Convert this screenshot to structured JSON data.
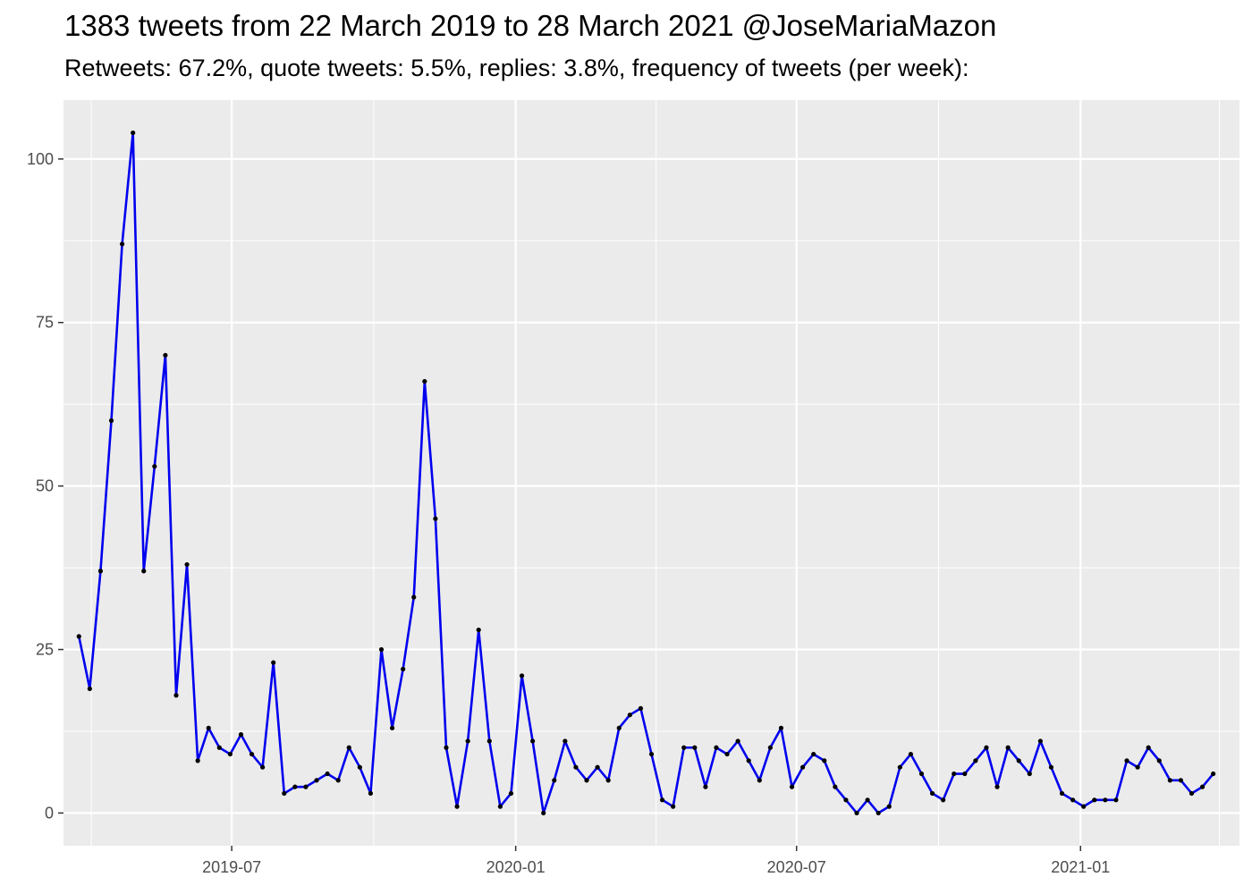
{
  "chart_data": {
    "type": "line",
    "title": "1383 tweets from 22 March 2019 to 28 March 2021 @JoseMariaMazon",
    "subtitle": "Retweets: 67.2%, quote tweets: 5.5%, replies: 3.8%, frequency of tweets (per week):",
    "xlabel": "",
    "ylabel": "",
    "x_axis": {
      "type": "date",
      "range": [
        "2019-03-14",
        "2021-04-14"
      ],
      "ticks": [
        {
          "date": "2019-07-01",
          "label": "2019-07"
        },
        {
          "date": "2020-01-01",
          "label": "2020-01"
        },
        {
          "date": "2020-07-01",
          "label": "2020-07"
        },
        {
          "date": "2021-01-01",
          "label": "2021-01"
        }
      ],
      "minor_ticks": [
        "2019-04-01",
        "2019-10-01",
        "2020-04-01",
        "2020-10-01",
        "2021-04-01"
      ]
    },
    "y_axis": {
      "range": [
        -5,
        109
      ],
      "ticks": [
        0,
        25,
        50,
        75,
        100
      ]
    },
    "grid": true,
    "colors": {
      "panel": "#ebebeb",
      "gridline": "#ffffff",
      "line": "#0000ee",
      "point": "#000000"
    },
    "series": [
      {
        "x": [
          "2019-03-24",
          "2019-03-31",
          "2019-04-07",
          "2019-04-14",
          "2019-04-21",
          "2019-04-28",
          "2019-05-05",
          "2019-05-12",
          "2019-05-19",
          "2019-05-26",
          "2019-06-02",
          "2019-06-09",
          "2019-06-16",
          "2019-06-23",
          "2019-06-30",
          "2019-07-07",
          "2019-07-14",
          "2019-07-21",
          "2019-07-28",
          "2019-08-04",
          "2019-08-11",
          "2019-08-18",
          "2019-08-25",
          "2019-09-01",
          "2019-09-08",
          "2019-09-15",
          "2019-09-22",
          "2019-09-29",
          "2019-10-06",
          "2019-10-13",
          "2019-10-20",
          "2019-10-27",
          "2019-11-03",
          "2019-11-10",
          "2019-11-17",
          "2019-11-24",
          "2019-12-01",
          "2019-12-08",
          "2019-12-15",
          "2019-12-22",
          "2019-12-29",
          "2020-01-05",
          "2020-01-12",
          "2020-01-19",
          "2020-01-26",
          "2020-02-02",
          "2020-02-09",
          "2020-02-16",
          "2020-02-23",
          "2020-03-01",
          "2020-03-08",
          "2020-03-15",
          "2020-03-22",
          "2020-03-29",
          "2020-04-05",
          "2020-04-12",
          "2020-04-19",
          "2020-04-26",
          "2020-05-03",
          "2020-05-10",
          "2020-05-17",
          "2020-05-24",
          "2020-05-31",
          "2020-06-07",
          "2020-06-14",
          "2020-06-21",
          "2020-06-28",
          "2020-07-05",
          "2020-07-12",
          "2020-07-19",
          "2020-07-26",
          "2020-08-02",
          "2020-08-09",
          "2020-08-16",
          "2020-08-23",
          "2020-08-30",
          "2020-09-06",
          "2020-09-13",
          "2020-09-20",
          "2020-09-27",
          "2020-10-04",
          "2020-10-11",
          "2020-10-18",
          "2020-10-25",
          "2020-11-01",
          "2020-11-08",
          "2020-11-15",
          "2020-11-22",
          "2020-11-29",
          "2020-12-06",
          "2020-12-13",
          "2020-12-20",
          "2020-12-27",
          "2021-01-03",
          "2021-01-10",
          "2021-01-17",
          "2021-01-24",
          "2021-01-31",
          "2021-02-07",
          "2021-02-14",
          "2021-02-21",
          "2021-02-28",
          "2021-03-07",
          "2021-03-14",
          "2021-03-21",
          "2021-03-28"
        ],
        "values": [
          27,
          19,
          37,
          60,
          87,
          104,
          37,
          53,
          70,
          18,
          38,
          8,
          13,
          10,
          9,
          12,
          9,
          7,
          23,
          3,
          4,
          4,
          5,
          6,
          5,
          10,
          7,
          3,
          25,
          13,
          22,
          33,
          66,
          45,
          10,
          1,
          11,
          28,
          11,
          1,
          3,
          21,
          11,
          0,
          5,
          11,
          7,
          5,
          7,
          5,
          13,
          15,
          16,
          9,
          2,
          1,
          10,
          10,
          4,
          10,
          9,
          11,
          8,
          5,
          10,
          13,
          4,
          7,
          9,
          8,
          4,
          2,
          0,
          2,
          0,
          1,
          7,
          9,
          6,
          3,
          2,
          6,
          6,
          8,
          10,
          4,
          10,
          8,
          6,
          11,
          7,
          3,
          2,
          1,
          2,
          2,
          2,
          8,
          7,
          10,
          8,
          5,
          5,
          3,
          4,
          6
        ]
      }
    ]
  }
}
